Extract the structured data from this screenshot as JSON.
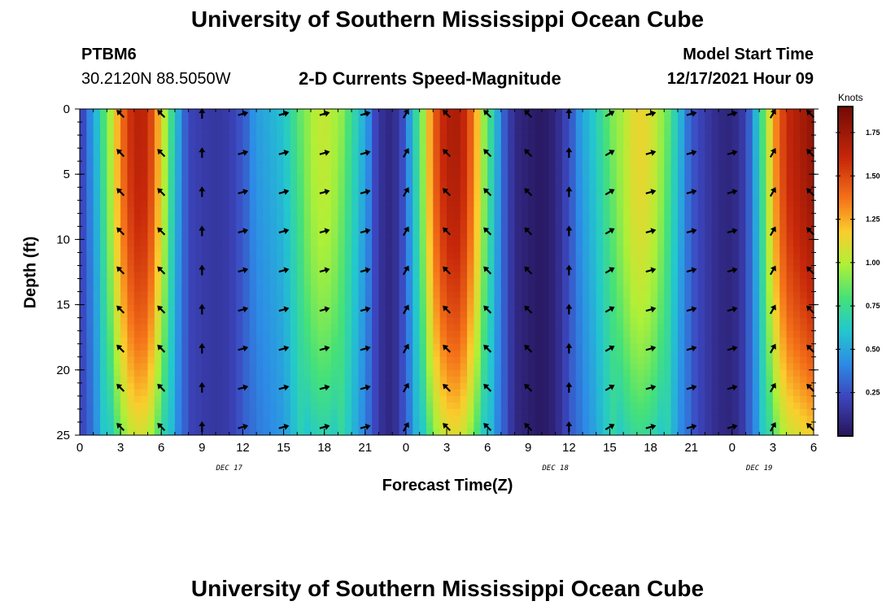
{
  "header": {
    "title": "University of Southern Mississippi Ocean Cube",
    "station": "PTBM6",
    "coords": "30.2120N  88.5050W",
    "subtitle": "2-D Currents Speed-Magnitude",
    "model_label": "Model Start Time",
    "model_time": "12/17/2021 Hour 09",
    "footer_title": "University of Southern Mississippi Ocean Cube"
  },
  "chart_data": {
    "type": "heatmap",
    "title": "2-D Currents Speed-Magnitude",
    "xlabel": "Forecast Time(Z)",
    "ylabel": "Depth (ft)",
    "x_ticks": [
      "0",
      "3",
      "6",
      "9",
      "12",
      "15",
      "18",
      "21",
      "0",
      "3",
      "6",
      "9",
      "12",
      "15",
      "18",
      "21",
      "0",
      "3",
      "6"
    ],
    "x_range_hours": [
      0,
      54
    ],
    "y_ticks": [
      "0",
      "5",
      "10",
      "15",
      "20",
      "25"
    ],
    "ylim": [
      0,
      25
    ],
    "y_inverted": true,
    "date_labels": [
      {
        "label": "DEC 17",
        "hour": 11
      },
      {
        "label": "DEC 18",
        "hour": 35
      },
      {
        "label": "DEC 19",
        "hour": 50
      }
    ],
    "colorbar": {
      "title": "Knots",
      "ticks": [
        "0.25",
        "0.50",
        "0.75",
        "1.00",
        "1.25",
        "1.50",
        "1.75"
      ],
      "range": [
        0,
        1.9
      ]
    },
    "speed_profile_hours": [
      0,
      1,
      2,
      3,
      4,
      5,
      6,
      7,
      8,
      9,
      10,
      11,
      12,
      13,
      14,
      15,
      16,
      17,
      18,
      19,
      20,
      21,
      22,
      23,
      24,
      25,
      26,
      27,
      28,
      29,
      30,
      31,
      32,
      33,
      34,
      35,
      36,
      37,
      38,
      39,
      40,
      41,
      42,
      43,
      44,
      45,
      46,
      47,
      48,
      49,
      50,
      51,
      52,
      53,
      54
    ],
    "speed_profile_knots": [
      0.18,
      0.42,
      0.85,
      1.35,
      1.65,
      1.62,
      1.15,
      0.55,
      0.22,
      0.18,
      0.16,
      0.18,
      0.28,
      0.42,
      0.48,
      0.55,
      0.75,
      0.98,
      1.05,
      0.95,
      0.7,
      0.45,
      0.15,
      0.08,
      0.3,
      0.78,
      1.4,
      1.68,
      1.7,
      1.35,
      0.8,
      0.35,
      0.1,
      0.05,
      0.02,
      0.08,
      0.25,
      0.45,
      0.6,
      0.82,
      1.0,
      1.15,
      1.1,
      0.9,
      0.55,
      0.28,
      0.18,
      0.1,
      0.08,
      0.2,
      0.6,
      1.25,
      1.6,
      1.7,
      1.8
    ],
    "arrow_depths_ft": [
      0,
      3,
      6,
      9,
      12,
      15,
      18,
      21,
      24
    ],
    "arrow_hours": [
      3,
      6,
      9,
      12,
      15,
      18,
      21,
      24,
      27,
      30,
      33,
      36,
      39,
      42,
      45,
      48,
      51,
      54
    ],
    "arrow_directions_deg": [
      225,
      225,
      270,
      345,
      345,
      345,
      345,
      300,
      225,
      225,
      225,
      270,
      330,
      345,
      345,
      345,
      300,
      225
    ]
  }
}
